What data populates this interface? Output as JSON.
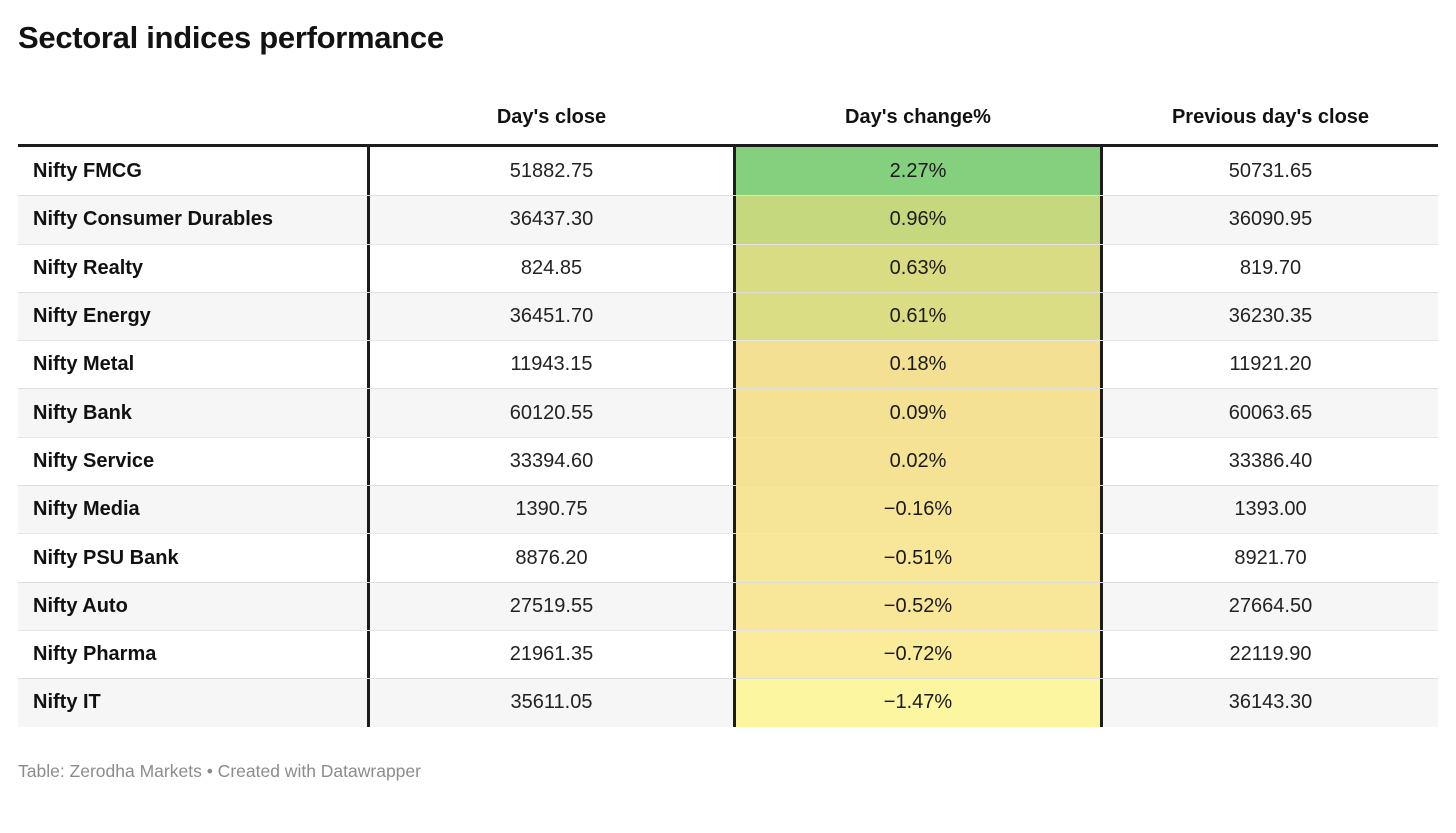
{
  "title": "Sectoral indices performance",
  "footer": "Table: Zerodha Markets • Created with Datawrapper",
  "chart_data": {
    "type": "table",
    "title": "Sectoral indices performance",
    "columns": [
      "",
      "Day's close",
      "Day's change%",
      "Previous day's close"
    ],
    "heatmap_column": "Day's change%",
    "color_scale_note": "green at high positive change, fading to pale yellow at most negative",
    "rows": [
      {
        "label": "Nifty FMCG",
        "close": "51882.75",
        "change": "2.27%",
        "prev_close": "50731.65",
        "cell_color": "#85d07e"
      },
      {
        "label": "Nifty Consumer Durables",
        "close": "36437.30",
        "change": "0.96%",
        "prev_close": "36090.95",
        "cell_color": "#c6d87d"
      },
      {
        "label": "Nifty Realty",
        "close": "824.85",
        "change": "0.63%",
        "prev_close": "819.70",
        "cell_color": "#d9dc83"
      },
      {
        "label": "Nifty Energy",
        "close": "36451.70",
        "change": "0.61%",
        "prev_close": "36230.35",
        "cell_color": "#dadd84"
      },
      {
        "label": "Nifty Metal",
        "close": "11943.15",
        "change": "0.18%",
        "prev_close": "11921.20",
        "cell_color": "#f3e093"
      },
      {
        "label": "Nifty Bank",
        "close": "60120.55",
        "change": "0.09%",
        "prev_close": "60063.65",
        "cell_color": "#f4e194"
      },
      {
        "label": "Nifty Service",
        "close": "33394.60",
        "change": "0.02%",
        "prev_close": "33386.40",
        "cell_color": "#f5e295"
      },
      {
        "label": "Nifty Media",
        "close": "1390.75",
        "change": "−0.16%",
        "prev_close": "1393.00",
        "cell_color": "#f7e597"
      },
      {
        "label": "Nifty PSU Bank",
        "close": "8876.20",
        "change": "−0.51%",
        "prev_close": "8921.70",
        "cell_color": "#f8e798"
      },
      {
        "label": "Nifty Auto",
        "close": "27519.55",
        "change": "−0.52%",
        "prev_close": "27664.50",
        "cell_color": "#f8e798"
      },
      {
        "label": "Nifty Pharma",
        "close": "21961.35",
        "change": "−0.72%",
        "prev_close": "22119.90",
        "cell_color": "#fbec9c"
      },
      {
        "label": "Nifty IT",
        "close": "35611.05",
        "change": "−1.47%",
        "prev_close": "36143.30",
        "cell_color": "#fdf6a1"
      }
    ]
  }
}
